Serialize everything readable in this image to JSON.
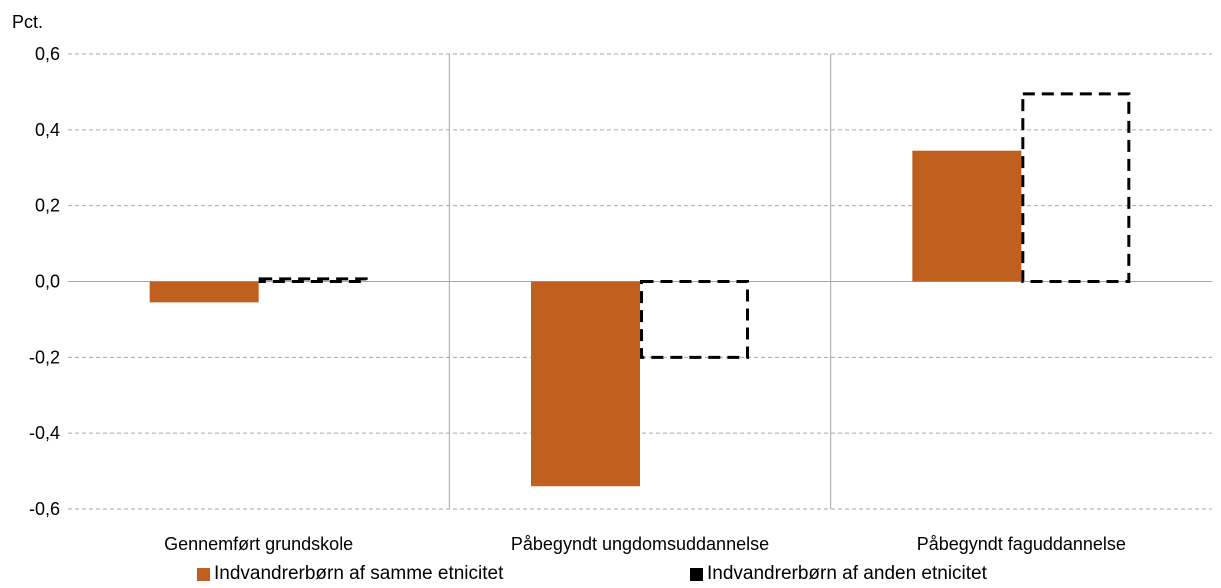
{
  "chart_data": {
    "type": "bar",
    "ylabel": "Pct.",
    "ylim": [
      -0.6,
      0.6
    ],
    "yticks": [
      -0.6,
      -0.4,
      -0.2,
      0.0,
      0.2,
      0.4,
      0.6
    ],
    "ytick_labels": [
      "-0,6",
      "-0,4",
      "-0,2",
      "0,0",
      "0,2",
      "0,4",
      "0,6"
    ],
    "grid": true,
    "legend_position": "bottom",
    "categories": [
      "Gennemført grundskole",
      "Påbegyndt ungdomsuddannelse",
      "Påbegyndt faguddannelse"
    ],
    "series": [
      {
        "name": "Indvandrerbørn af samme etnicitet",
        "values": [
          -0.055,
          -0.54,
          0.345
        ],
        "color": "#C0601E",
        "style": "filled"
      },
      {
        "name": "Indvandrerbørn af anden etnicitet",
        "values": [
          0.007,
          -0.2,
          0.495
        ],
        "color": "#000000",
        "style": "dashed-outline"
      }
    ]
  }
}
